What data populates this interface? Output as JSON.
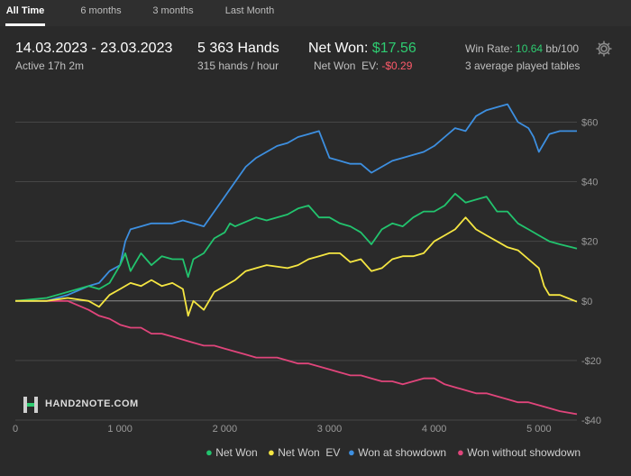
{
  "tabs": [
    {
      "label": "All Time",
      "active": true
    },
    {
      "label": "6 months",
      "active": false
    },
    {
      "label": "3 months",
      "active": false
    },
    {
      "label": "Last Month",
      "active": false
    }
  ],
  "stats": {
    "date_range": "14.03.2023 - 23.03.2023",
    "active_time": "Active 17h 2m",
    "hands": "5 363 Hands",
    "hands_rate": "315 hands / hour",
    "net_won_label": "Net Won:",
    "net_won_value": "$17.56",
    "net_won_ev_label": "Net Won  EV:",
    "net_won_ev_value": "-$0.29",
    "win_rate_label": "Win Rate:",
    "win_rate_value": "10.64",
    "win_rate_unit": "bb/100",
    "tables": "3 average played tables"
  },
  "settings_icon": "gear-icon",
  "logo": {
    "text": "HAND2NOTE.COM",
    "icon": "h2n-logo-icon"
  },
  "colors": {
    "net_won": "#22c46e",
    "net_won_ev": "#f5e642",
    "won_at_showdown": "#3d8fe0",
    "won_without_showdown": "#e0457b",
    "positive": "#2ecc71",
    "negative": "#ff5a6a"
  },
  "chart_data": {
    "type": "line",
    "xlim": [
      0,
      5363
    ],
    "ylim": [
      -40,
      68
    ],
    "x_ticks": [
      0,
      1000,
      2000,
      3000,
      4000,
      5000
    ],
    "x_tick_labels": [
      "0",
      "1 000",
      "2 000",
      "3 000",
      "4 000",
      "5 000"
    ],
    "y_ticks": [
      60,
      40,
      20,
      0,
      -20,
      -40
    ],
    "y_tick_labels": [
      "$60",
      "$40",
      "$20",
      "$0",
      "-$20",
      "-$40"
    ],
    "grid": "horizontal",
    "legend_position": "bottom-right",
    "series": [
      {
        "name": "Net Won",
        "color": "#22c46e",
        "x": [
          0,
          300,
          500,
          700,
          800,
          900,
          1000,
          1050,
          1100,
          1200,
          1300,
          1400,
          1500,
          1600,
          1650,
          1700,
          1800,
          1900,
          2000,
          2050,
          2100,
          2300,
          2400,
          2600,
          2700,
          2800,
          2900,
          3000,
          3100,
          3200,
          3300,
          3400,
          3500,
          3600,
          3700,
          3800,
          3900,
          4000,
          4100,
          4200,
          4300,
          4400,
          4500,
          4600,
          4700,
          4800,
          4900,
          5000,
          5100,
          5200,
          5363
        ],
        "y": [
          0,
          1,
          3,
          5,
          4,
          6,
          12,
          16,
          10,
          16,
          12,
          15,
          14,
          14,
          8,
          14,
          16,
          21,
          23,
          26,
          25,
          28,
          27,
          29,
          31,
          32,
          28,
          28,
          26,
          25,
          23,
          19,
          24,
          26,
          25,
          28,
          30,
          30,
          32,
          36,
          33,
          34,
          35,
          30,
          30,
          26,
          24,
          22,
          20,
          19,
          17.56
        ]
      },
      {
        "name": "Net Won  EV",
        "color": "#f5e642",
        "x": [
          0,
          300,
          500,
          700,
          800,
          900,
          1000,
          1100,
          1200,
          1300,
          1400,
          1500,
          1600,
          1650,
          1700,
          1800,
          1900,
          2000,
          2100,
          2200,
          2300,
          2400,
          2600,
          2700,
          2800,
          2900,
          3000,
          3100,
          3200,
          3300,
          3400,
          3500,
          3600,
          3700,
          3800,
          3900,
          4000,
          4100,
          4200,
          4300,
          4400,
          4500,
          4600,
          4700,
          4800,
          4900,
          5000,
          5050,
          5100,
          5200,
          5363
        ],
        "y": [
          0,
          0,
          1,
          0,
          -2,
          2,
          4,
          6,
          5,
          7,
          5,
          6,
          4,
          -5,
          0,
          -3,
          3,
          5,
          7,
          10,
          11,
          12,
          11,
          12,
          14,
          15,
          16,
          16,
          13,
          14,
          10,
          11,
          14,
          15,
          15,
          16,
          20,
          22,
          24,
          28,
          24,
          22,
          20,
          18,
          17,
          14,
          11,
          5,
          2,
          2,
          -0.29
        ]
      },
      {
        "name": "Won at showdown",
        "color": "#3d8fe0",
        "x": [
          0,
          300,
          500,
          700,
          800,
          900,
          1000,
          1050,
          1100,
          1200,
          1300,
          1400,
          1500,
          1600,
          1700,
          1800,
          1900,
          2000,
          2100,
          2200,
          2300,
          2400,
          2500,
          2600,
          2700,
          2800,
          2900,
          3000,
          3100,
          3200,
          3300,
          3400,
          3500,
          3600,
          3700,
          3800,
          3900,
          4000,
          4100,
          4200,
          4300,
          4400,
          4500,
          4600,
          4700,
          4800,
          4900,
          4950,
          5000,
          5100,
          5200,
          5363
        ],
        "y": [
          0,
          0,
          2,
          5,
          6,
          10,
          12,
          20,
          24,
          25,
          26,
          26,
          26,
          27,
          26,
          25,
          30,
          35,
          40,
          45,
          48,
          50,
          52,
          53,
          55,
          56,
          57,
          48,
          47,
          46,
          46,
          43,
          45,
          47,
          48,
          49,
          50,
          52,
          55,
          58,
          57,
          62,
          64,
          65,
          66,
          60,
          58,
          55,
          50,
          56,
          57,
          57
        ]
      },
      {
        "name": "Won without showdown",
        "color": "#e0457b",
        "x": [
          0,
          300,
          500,
          700,
          800,
          900,
          1000,
          1100,
          1200,
          1300,
          1400,
          1500,
          1600,
          1700,
          1800,
          1900,
          2000,
          2100,
          2200,
          2300,
          2400,
          2500,
          2600,
          2700,
          2800,
          2900,
          3000,
          3100,
          3200,
          3300,
          3400,
          3500,
          3600,
          3700,
          3800,
          3900,
          4000,
          4100,
          4200,
          4300,
          4400,
          4500,
          4600,
          4700,
          4800,
          4900,
          5000,
          5100,
          5200,
          5363
        ],
        "y": [
          0,
          0,
          0,
          -3,
          -5,
          -6,
          -8,
          -9,
          -9,
          -11,
          -11,
          -12,
          -13,
          -14,
          -15,
          -15,
          -16,
          -17,
          -18,
          -19,
          -19,
          -19,
          -20,
          -21,
          -21,
          -22,
          -23,
          -24,
          -25,
          -25,
          -26,
          -27,
          -27,
          -28,
          -27,
          -26,
          -26,
          -28,
          -29,
          -30,
          -31,
          -31,
          -32,
          -33,
          -34,
          -34,
          -35,
          -36,
          -37,
          -38
        ]
      }
    ]
  }
}
